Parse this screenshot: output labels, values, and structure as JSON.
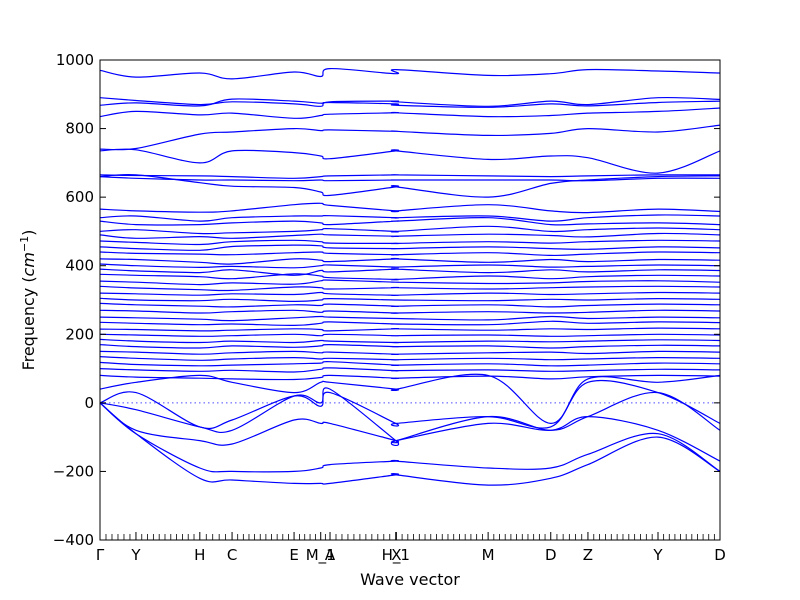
{
  "chart_data": {
    "type": "line",
    "title": "",
    "xlabel": "Wave vector",
    "ylabel": "Frequency",
    "ylabel_unit": "cm",
    "ylabel_unit_exponent": "−1",
    "ylim": [
      -400,
      1000
    ],
    "y_ticks": [
      -400,
      -200,
      0,
      200,
      400,
      600,
      800,
      1000
    ],
    "zero_line": "dotted",
    "grid": false,
    "legend": "none",
    "line_color": "#0000ff",
    "x_points": [
      {
        "label": "Γ",
        "pos": 0.0
      },
      {
        "label": "Y",
        "pos": 0.058
      },
      {
        "label": "H",
        "pos": 0.161
      },
      {
        "label": "C",
        "pos": 0.213
      },
      {
        "label": "E",
        "pos": 0.313
      },
      {
        "label": "M_1",
        "pos": 0.356
      },
      {
        "label": "A",
        "pos": 0.371
      },
      {
        "label": "H_1",
        "pos": 0.477
      },
      {
        "label": "X",
        "pos": 0.478
      },
      {
        "label": "M",
        "pos": 0.626
      },
      {
        "label": "D",
        "pos": 0.727
      },
      {
        "label": "Z",
        "pos": 0.787
      },
      {
        "label": "Y",
        "pos": 0.9
      },
      {
        "label": "D",
        "pos": 1.0
      }
    ],
    "series": [
      {
        "values": [
          970,
          950,
          962,
          945,
          965,
          952,
          975,
          960,
          972,
          955,
          960,
          972,
          968,
          962
        ]
      },
      {
        "values": [
          890,
          882,
          870,
          878,
          872,
          865,
          878,
          880,
          878,
          865,
          880,
          870,
          890,
          885
        ]
      },
      {
        "values": [
          868,
          875,
          866,
          886,
          880,
          874,
          876,
          872,
          868,
          862,
          872,
          866,
          876,
          880
        ]
      },
      {
        "values": [
          835,
          850,
          840,
          845,
          830,
          838,
          842,
          846,
          846,
          835,
          838,
          845,
          850,
          860
        ]
      },
      {
        "values": [
          740,
          742,
          784,
          790,
          800,
          794,
          796,
          792,
          792,
          780,
          786,
          800,
          790,
          810
        ]
      },
      {
        "values": [
          735,
          738,
          700,
          735,
          730,
          720,
          712,
          735,
          735,
          710,
          720,
          715,
          670,
          735
        ]
      },
      {
        "values": [
          665,
          663,
          662,
          660,
          655,
          660,
          662,
          665,
          665,
          662,
          660,
          662,
          665,
          665
        ]
      },
      {
        "values": [
          660,
          655,
          650,
          650,
          648,
          650,
          648,
          650,
          650,
          650,
          650,
          648,
          655,
          655
        ]
      },
      {
        "values": [
          660,
          665,
          642,
          632,
          628,
          615,
          605,
          630,
          630,
          600,
          640,
          650,
          660,
          662
        ]
      },
      {
        "values": [
          565,
          560,
          556,
          560,
          578,
          582,
          576,
          560,
          560,
          578,
          560,
          555,
          565,
          558
        ]
      },
      {
        "values": [
          540,
          545,
          530,
          540,
          545,
          545,
          546,
          540,
          540,
          545,
          530,
          540,
          548,
          545
        ]
      },
      {
        "values": [
          530,
          520,
          520,
          525,
          530,
          525,
          520,
          530,
          530,
          540,
          520,
          522,
          525,
          520
        ]
      },
      {
        "values": [
          500,
          505,
          494,
          496,
          500,
          505,
          508,
          500,
          500,
          515,
          500,
          505,
          510,
          505
        ]
      },
      {
        "values": [
          490,
          480,
          485,
          480,
          488,
          492,
          490,
          486,
          486,
          492,
          488,
          484,
          494,
          490
        ]
      },
      {
        "values": [
          472,
          468,
          462,
          470,
          474,
          470,
          466,
          465,
          465,
          470,
          466,
          470,
          474,
          472
        ]
      },
      {
        "values": [
          455,
          450,
          445,
          456,
          460,
          458,
          452,
          450,
          450,
          455,
          450,
          448,
          455,
          452
        ]
      },
      {
        "values": [
          440,
          436,
          434,
          432,
          438,
          440,
          436,
          432,
          432,
          438,
          430,
          434,
          440,
          438
        ]
      },
      {
        "values": [
          420,
          418,
          410,
          405,
          420,
          416,
          412,
          420,
          420,
          410,
          418,
          412,
          418,
          416
        ]
      },
      {
        "values": [
          405,
          400,
          395,
          398,
          394,
          400,
          402,
          396,
          396,
          402,
          396,
          398,
          402,
          400
        ]
      },
      {
        "values": [
          390,
          385,
          380,
          388,
          372,
          386,
          382,
          390,
          390,
          380,
          388,
          382,
          388,
          386
        ]
      },
      {
        "values": [
          375,
          372,
          368,
          362,
          376,
          370,
          365,
          360,
          360,
          370,
          362,
          368,
          372,
          370
        ]
      },
      {
        "values": [
          355,
          352,
          345,
          350,
          346,
          356,
          358,
          352,
          352,
          348,
          350,
          354,
          356,
          352
        ]
      },
      {
        "values": [
          340,
          335,
          330,
          328,
          338,
          336,
          332,
          336,
          336,
          332,
          336,
          338,
          340,
          338
        ]
      },
      {
        "values": [
          320,
          318,
          314,
          318,
          316,
          322,
          318,
          314,
          314,
          320,
          316,
          318,
          322,
          320
        ]
      },
      {
        "values": [
          305,
          300,
          298,
          302,
          296,
          300,
          304,
          300,
          300,
          298,
          302,
          300,
          304,
          302
        ]
      },
      {
        "values": [
          290,
          286,
          282,
          280,
          286,
          284,
          288,
          282,
          282,
          286,
          280,
          284,
          288,
          286
        ]
      },
      {
        "values": [
          270,
          268,
          262,
          266,
          270,
          264,
          268,
          262,
          262,
          266,
          262,
          264,
          270,
          268
        ]
      },
      {
        "values": [
          250,
          248,
          244,
          240,
          248,
          252,
          250,
          246,
          246,
          242,
          252,
          246,
          250,
          248
        ]
      },
      {
        "values": [
          235,
          232,
          228,
          230,
          226,
          232,
          236,
          230,
          230,
          228,
          238,
          232,
          236,
          234
        ]
      },
      {
        "values": [
          215,
          214,
          210,
          212,
          216,
          214,
          210,
          216,
          216,
          212,
          216,
          214,
          218,
          216
        ]
      },
      {
        "values": [
          200,
          198,
          194,
          196,
          200,
          196,
          200,
          196,
          196,
          198,
          194,
          196,
          200,
          198
        ]
      },
      {
        "values": [
          185,
          180,
          176,
          180,
          176,
          182,
          180,
          176,
          176,
          180,
          178,
          180,
          184,
          182
        ]
      },
      {
        "values": [
          170,
          164,
          160,
          166,
          162,
          166,
          170,
          164,
          164,
          166,
          160,
          164,
          168,
          166
        ]
      },
      {
        "values": [
          150,
          148,
          142,
          146,
          150,
          146,
          148,
          142,
          142,
          146,
          148,
          144,
          150,
          148
        ]
      },
      {
        "values": [
          135,
          130,
          124,
          128,
          132,
          128,
          130,
          126,
          126,
          130,
          126,
          128,
          132,
          130
        ]
      },
      {
        "values": [
          118,
          112,
          108,
          110,
          114,
          116,
          120,
          110,
          110,
          114,
          108,
          110,
          116,
          114
        ]
      },
      {
        "values": [
          100,
          96,
          92,
          95,
          90,
          98,
          102,
          94,
          94,
          96,
          92,
          94,
          98,
          96
        ]
      },
      {
        "values": [
          80,
          75,
          72,
          70,
          68,
          74,
          80,
          72,
          72,
          78,
          70,
          76,
          80,
          78
        ]
      },
      {
        "values": [
          40,
          60,
          80,
          60,
          30,
          60,
          60,
          40,
          40,
          80,
          -60,
          70,
          60,
          80
        ]
      },
      {
        "values": [
          0,
          30,
          -70,
          -50,
          20,
          -10,
          30,
          -60,
          -60,
          -40,
          -70,
          60,
          30,
          -60
        ]
      },
      {
        "values": [
          0,
          -20,
          -70,
          -80,
          20,
          0,
          40,
          -110,
          -110,
          -40,
          -80,
          -40,
          30,
          -80
        ]
      },
      {
        "values": [
          0,
          -80,
          -110,
          -120,
          -50,
          -60,
          -60,
          -110,
          -110,
          -60,
          -80,
          -40,
          -80,
          -170
        ]
      },
      {
        "values": [
          0,
          -90,
          -190,
          -200,
          -200,
          -190,
          -180,
          -170,
          -170,
          -190,
          -190,
          -150,
          -90,
          -200
        ]
      },
      {
        "values": [
          0,
          -90,
          -220,
          -225,
          -235,
          -235,
          -235,
          -210,
          -210,
          -240,
          -220,
          -180,
          -100,
          -200
        ]
      }
    ]
  }
}
